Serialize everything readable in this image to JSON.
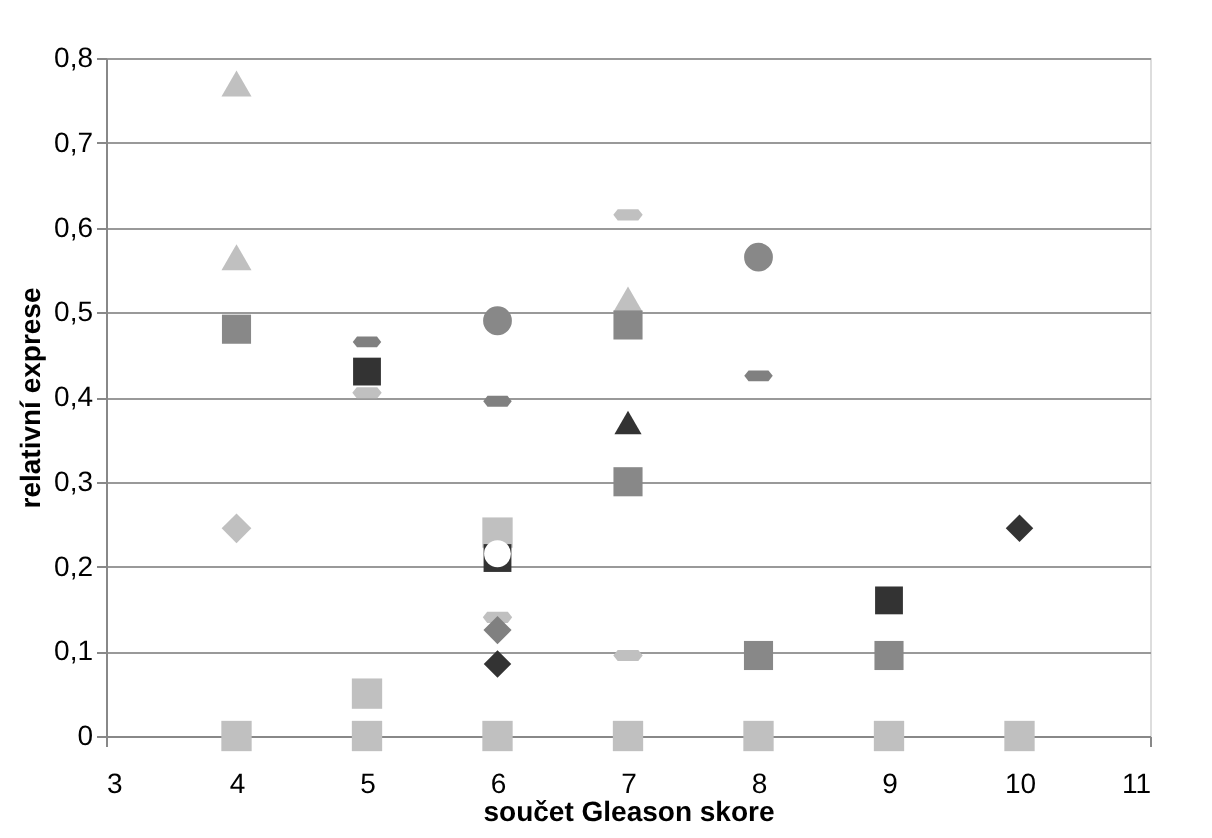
{
  "chart_data": {
    "type": "scatter",
    "xlabel": "součet Gleason skore",
    "ylabel": "relativní exprese",
    "xlim": [
      3,
      11
    ],
    "xticks": [
      3,
      4,
      5,
      6,
      7,
      8,
      9,
      10,
      11
    ],
    "ylim": [
      0,
      0.8
    ],
    "yticks": [
      {
        "value": 0,
        "label": "0"
      },
      {
        "value": 0.1,
        "label": "0,1"
      },
      {
        "value": 0.2,
        "label": "0,2"
      },
      {
        "value": 0.3,
        "label": "0,3"
      },
      {
        "value": 0.4,
        "label": "0,4"
      },
      {
        "value": 0.5,
        "label": "0,5"
      },
      {
        "value": 0.6,
        "label": "0,6"
      },
      {
        "value": 0.7,
        "label": "0,7"
      },
      {
        "value": 0.8,
        "label": "0,8"
      }
    ],
    "grid": "y",
    "legend": false,
    "series": [
      {
        "color": "#c0c0c0",
        "marker": "square",
        "x": [
          4,
          5,
          6,
          7,
          8,
          9,
          10,
          5,
          6
        ],
        "values": [
          0,
          0,
          0,
          0,
          0,
          0,
          0,
          0.05,
          0.24
        ]
      },
      {
        "color": "#c0c0c0",
        "marker": "triangle",
        "x": [
          4,
          4,
          7
        ],
        "values": [
          0.77,
          0.565,
          0.515
        ]
      },
      {
        "color": "#c0c0c0",
        "marker": "diamond",
        "x": [
          4
        ],
        "values": [
          0.245
        ]
      },
      {
        "color": "#c0c0c0",
        "x": [
          5,
          7,
          7,
          6
        ],
        "values": [
          0.405,
          0.615,
          0.095,
          0.14
        ]
      },
      {
        "color": "#888888",
        "marker": "square",
        "x": [
          4,
          7,
          7,
          8,
          9
        ],
        "values": [
          0.48,
          0.485,
          0.3,
          0.095,
          0.095
        ]
      },
      {
        "color": "#888888",
        "marker": "circle",
        "x": [
          6,
          8
        ],
        "values": [
          0.49,
          0.565
        ]
      },
      {
        "color": "#808080",
        "x": [
          5,
          6,
          8
        ],
        "values": [
          0.465,
          0.395,
          0.425
        ]
      },
      {
        "color": "#808080",
        "marker": "diamond",
        "x": [
          6
        ],
        "values": [
          0.125
        ]
      },
      {
        "color": "#333333",
        "marker": "square",
        "x": [
          5,
          6,
          9
        ],
        "values": [
          0.43,
          0.21,
          0.16
        ]
      },
      {
        "color": "#333333",
        "marker": "diamond",
        "x": [
          6,
          10
        ],
        "values": [
          0.085,
          0.245
        ]
      },
      {
        "color": "#333333",
        "marker": "triangle",
        "x": [
          7
        ],
        "values": [
          0.37
        ]
      },
      {
        "color": "#ffffff",
        "marker": "circle",
        "x": [
          6
        ],
        "values": [
          0.215
        ]
      }
    ]
  }
}
